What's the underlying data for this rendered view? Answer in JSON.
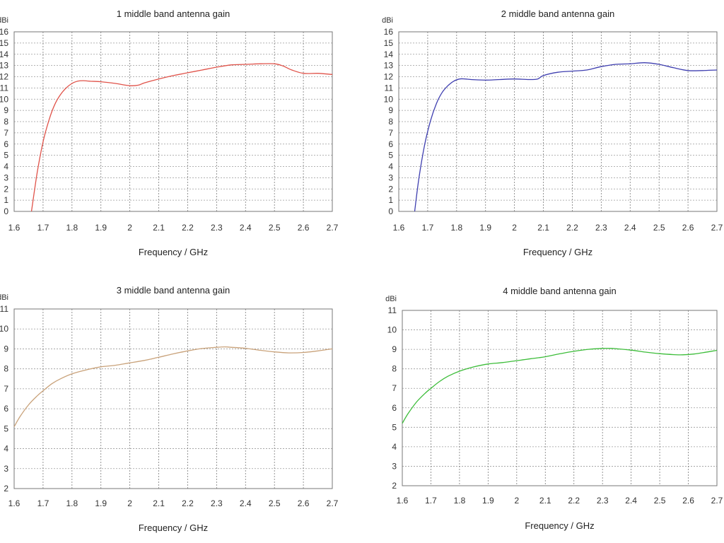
{
  "chart_data": [
    {
      "type": "line",
      "title": "1 middle band antenna gain",
      "xlabel": "Frequency / GHz",
      "ylabel": "dBi",
      "xlim": [
        1.6,
        2.7
      ],
      "ylim": [
        0,
        16
      ],
      "xticks": [
        "1.6",
        "1.7",
        "1.8",
        "1.9",
        "2",
        "2.1",
        "2.2",
        "2.3",
        "2.4",
        "2.5",
        "2.6",
        "2.7"
      ],
      "yticks": [
        "0",
        "1",
        "2",
        "3",
        "4",
        "5",
        "6",
        "7",
        "8",
        "9",
        "10",
        "11",
        "12",
        "13",
        "14",
        "15",
        "16"
      ],
      "grid": true,
      "color": "#e0534a",
      "series": [
        {
          "x": [
            1.66,
            1.68,
            1.7,
            1.72,
            1.74,
            1.76,
            1.78,
            1.8,
            1.82,
            1.84,
            1.86,
            1.9,
            1.95,
            2.0,
            2.03,
            2.05,
            2.1,
            2.15,
            2.2,
            2.25,
            2.3,
            2.35,
            2.4,
            2.45,
            2.5,
            2.53,
            2.56,
            2.6,
            2.65,
            2.7
          ],
          "y": [
            0,
            3.5,
            6.2,
            8.1,
            9.5,
            10.4,
            11.0,
            11.4,
            11.6,
            11.65,
            11.6,
            11.55,
            11.4,
            11.2,
            11.25,
            11.45,
            11.8,
            12.1,
            12.35,
            12.6,
            12.85,
            13.05,
            13.1,
            13.15,
            13.15,
            12.95,
            12.6,
            12.3,
            12.3,
            12.2
          ]
        }
      ]
    },
    {
      "type": "line",
      "title": "2 middle band antenna gain",
      "xlabel": "Frequency / GHz",
      "ylabel": "dBi",
      "xlim": [
        1.6,
        2.7
      ],
      "ylim": [
        0,
        16
      ],
      "xticks": [
        "1.6",
        "1.7",
        "1.8",
        "1.9",
        "2",
        "2.1",
        "2.2",
        "2.3",
        "2.4",
        "2.5",
        "2.6",
        "2.7"
      ],
      "yticks": [
        "0",
        "1",
        "2",
        "3",
        "4",
        "5",
        "6",
        "7",
        "8",
        "9",
        "10",
        "11",
        "12",
        "13",
        "14",
        "15",
        "16"
      ],
      "grid": true,
      "color": "#3f3fb0",
      "series": [
        {
          "x": [
            1.655,
            1.67,
            1.69,
            1.71,
            1.73,
            1.75,
            1.77,
            1.79,
            1.81,
            1.83,
            1.85,
            1.9,
            1.95,
            2.0,
            2.05,
            2.08,
            2.1,
            2.15,
            2.2,
            2.25,
            2.3,
            2.35,
            2.4,
            2.45,
            2.5,
            2.55,
            2.6,
            2.65,
            2.7
          ],
          "y": [
            0,
            3.0,
            6.0,
            8.1,
            9.6,
            10.6,
            11.2,
            11.6,
            11.8,
            11.8,
            11.75,
            11.7,
            11.75,
            11.8,
            11.75,
            11.8,
            12.1,
            12.4,
            12.5,
            12.6,
            12.9,
            13.1,
            13.15,
            13.25,
            13.1,
            12.8,
            12.55,
            12.55,
            12.6
          ]
        }
      ]
    },
    {
      "type": "line",
      "title": "3 middle band antenna gain",
      "xlabel": "Frequency / GHz",
      "ylabel": "dBi",
      "xlim": [
        1.6,
        2.7
      ],
      "ylim": [
        2,
        11
      ],
      "xticks": [
        "1.6",
        "1.7",
        "1.8",
        "1.9",
        "2",
        "2.1",
        "2.2",
        "2.3",
        "2.4",
        "2.5",
        "2.6",
        "2.7"
      ],
      "yticks": [
        "2",
        "3",
        "4",
        "5",
        "6",
        "7",
        "8",
        "9",
        "10",
        "11"
      ],
      "grid": true,
      "color": "#c9a27a",
      "series": [
        {
          "x": [
            1.6,
            1.62,
            1.65,
            1.68,
            1.7,
            1.73,
            1.76,
            1.8,
            1.85,
            1.9,
            1.95,
            2.0,
            2.05,
            2.1,
            2.15,
            2.2,
            2.25,
            2.3,
            2.33,
            2.35,
            2.4,
            2.45,
            2.5,
            2.55,
            2.6,
            2.65,
            2.7
          ],
          "y": [
            5.1,
            5.6,
            6.2,
            6.65,
            6.9,
            7.25,
            7.5,
            7.75,
            7.95,
            8.1,
            8.18,
            8.3,
            8.42,
            8.58,
            8.75,
            8.9,
            9.02,
            9.08,
            9.1,
            9.08,
            9.03,
            8.93,
            8.85,
            8.8,
            8.82,
            8.9,
            9.0
          ]
        }
      ]
    },
    {
      "type": "line",
      "title": "4 middle band antenna gain",
      "xlabel": "Frequency / GHz",
      "ylabel": "dBi",
      "xlim": [
        1.6,
        2.7
      ],
      "ylim": [
        2,
        11
      ],
      "xticks": [
        "1.6",
        "1.7",
        "1.8",
        "1.9",
        "2",
        "2.1",
        "2.2",
        "2.3",
        "2.4",
        "2.5",
        "2.6",
        "2.7"
      ],
      "yticks": [
        "2",
        "3",
        "4",
        "5",
        "6",
        "7",
        "8",
        "9",
        "10",
        "11"
      ],
      "grid": true,
      "color": "#3dbd3a",
      "series": [
        {
          "x": [
            1.6,
            1.62,
            1.65,
            1.68,
            1.7,
            1.73,
            1.76,
            1.8,
            1.85,
            1.9,
            1.95,
            2.0,
            2.05,
            2.1,
            2.15,
            2.2,
            2.25,
            2.3,
            2.33,
            2.35,
            2.4,
            2.45,
            2.5,
            2.55,
            2.58,
            2.62,
            2.66,
            2.7
          ],
          "y": [
            5.2,
            5.7,
            6.3,
            6.75,
            7.0,
            7.35,
            7.62,
            7.88,
            8.1,
            8.25,
            8.32,
            8.42,
            8.52,
            8.62,
            8.77,
            8.9,
            9.0,
            9.05,
            9.05,
            9.03,
            8.96,
            8.86,
            8.78,
            8.73,
            8.72,
            8.76,
            8.85,
            8.95
          ]
        }
      ]
    }
  ]
}
